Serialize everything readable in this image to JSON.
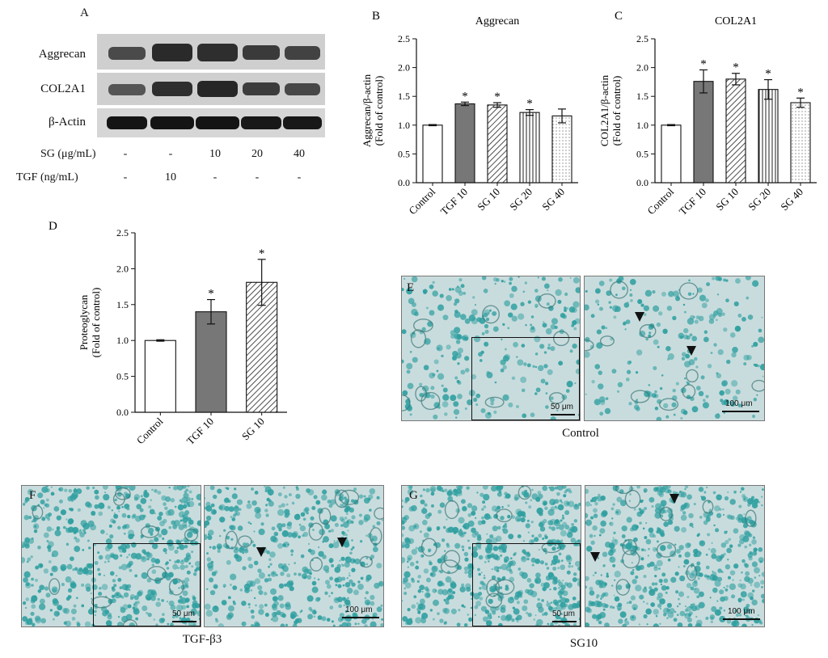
{
  "panel_a": {
    "letter": "A",
    "rows": [
      "Aggrecan",
      "COL2A1",
      "β-Actin"
    ],
    "conditions": [
      {
        "name": "SG (μg/mL)",
        "values": [
          "-",
          "-",
          "10",
          "20",
          "40"
        ]
      },
      {
        "name": "TGF (ng/mL)",
        "values": [
          "-",
          "10",
          "-",
          "-",
          "-"
        ]
      }
    ]
  },
  "chart_data": [
    {
      "letter": "B",
      "type": "bar",
      "title": "Aggrecan",
      "ylabel": "Aggrecan/β-actin (Fold of control)",
      "ylabel_lines": [
        "Aggrecan/β-actin",
        "(Fold of control)"
      ],
      "categories": [
        "Control",
        "TGF 10",
        "SG 10",
        "SG 20",
        "SG 40"
      ],
      "values": [
        1.0,
        1.37,
        1.35,
        1.22,
        1.16
      ],
      "errors": [
        0.01,
        0.03,
        0.04,
        0.05,
        0.12
      ],
      "significance": [
        "",
        "*",
        "*",
        "*",
        ""
      ],
      "patterns": [
        "white",
        "gray",
        "diag",
        "vert",
        "dots"
      ],
      "ylim": [
        0,
        2.5
      ],
      "yticks": [
        "0.0",
        "0.5",
        "1.0",
        "1.5",
        "2.0",
        "2.5"
      ]
    },
    {
      "letter": "C",
      "type": "bar",
      "title": "COL2A1",
      "ylabel": "COL2A1/β-actin (Fold of control)",
      "ylabel_lines": [
        "COL2A1/β-actin",
        "(Fold of control)"
      ],
      "categories": [
        "Control",
        "TGF 10",
        "SG 10",
        "SG 20",
        "SG 40"
      ],
      "values": [
        1.0,
        1.76,
        1.8,
        1.62,
        1.39
      ],
      "errors": [
        0.01,
        0.2,
        0.1,
        0.17,
        0.08
      ],
      "significance": [
        "",
        "*",
        "*",
        "*",
        "*"
      ],
      "patterns": [
        "white",
        "gray",
        "diag",
        "vert",
        "dots"
      ],
      "ylim": [
        0,
        2.5
      ],
      "yticks": [
        "0.0",
        "0.5",
        "1.0",
        "1.5",
        "2.0",
        "2.5"
      ]
    },
    {
      "letter": "D",
      "type": "bar",
      "title": "",
      "ylabel": "Proteoglycan (Fold of control)",
      "ylabel_lines": [
        "Proteoglycan",
        "(Fold of control)"
      ],
      "categories": [
        "Control",
        "TGF 10",
        "SG 10"
      ],
      "values": [
        1.0,
        1.4,
        1.81
      ],
      "errors": [
        0.01,
        0.17,
        0.32
      ],
      "significance": [
        "",
        "*",
        "*"
      ],
      "patterns": [
        "white",
        "gray",
        "diag"
      ],
      "ylim": [
        0,
        2.5
      ],
      "yticks": [
        "0.0",
        "0.5",
        "1.0",
        "1.5",
        "2.0",
        "2.5"
      ]
    }
  ],
  "micrographs": [
    {
      "letter": "E",
      "caption": "Control",
      "scale_small": "50 μm",
      "scale_large": "100 μm"
    },
    {
      "letter": "F",
      "caption": "TGF-β3",
      "scale_small": "50 μm",
      "scale_large": "100 μm"
    },
    {
      "letter": "G",
      "caption": "SG10",
      "scale_small": "50 μm",
      "scale_large": "100 μm"
    }
  ],
  "colors": {
    "stain": "#2f9fa0",
    "background": "#c9dcdd",
    "gray_bar": "#777777"
  }
}
